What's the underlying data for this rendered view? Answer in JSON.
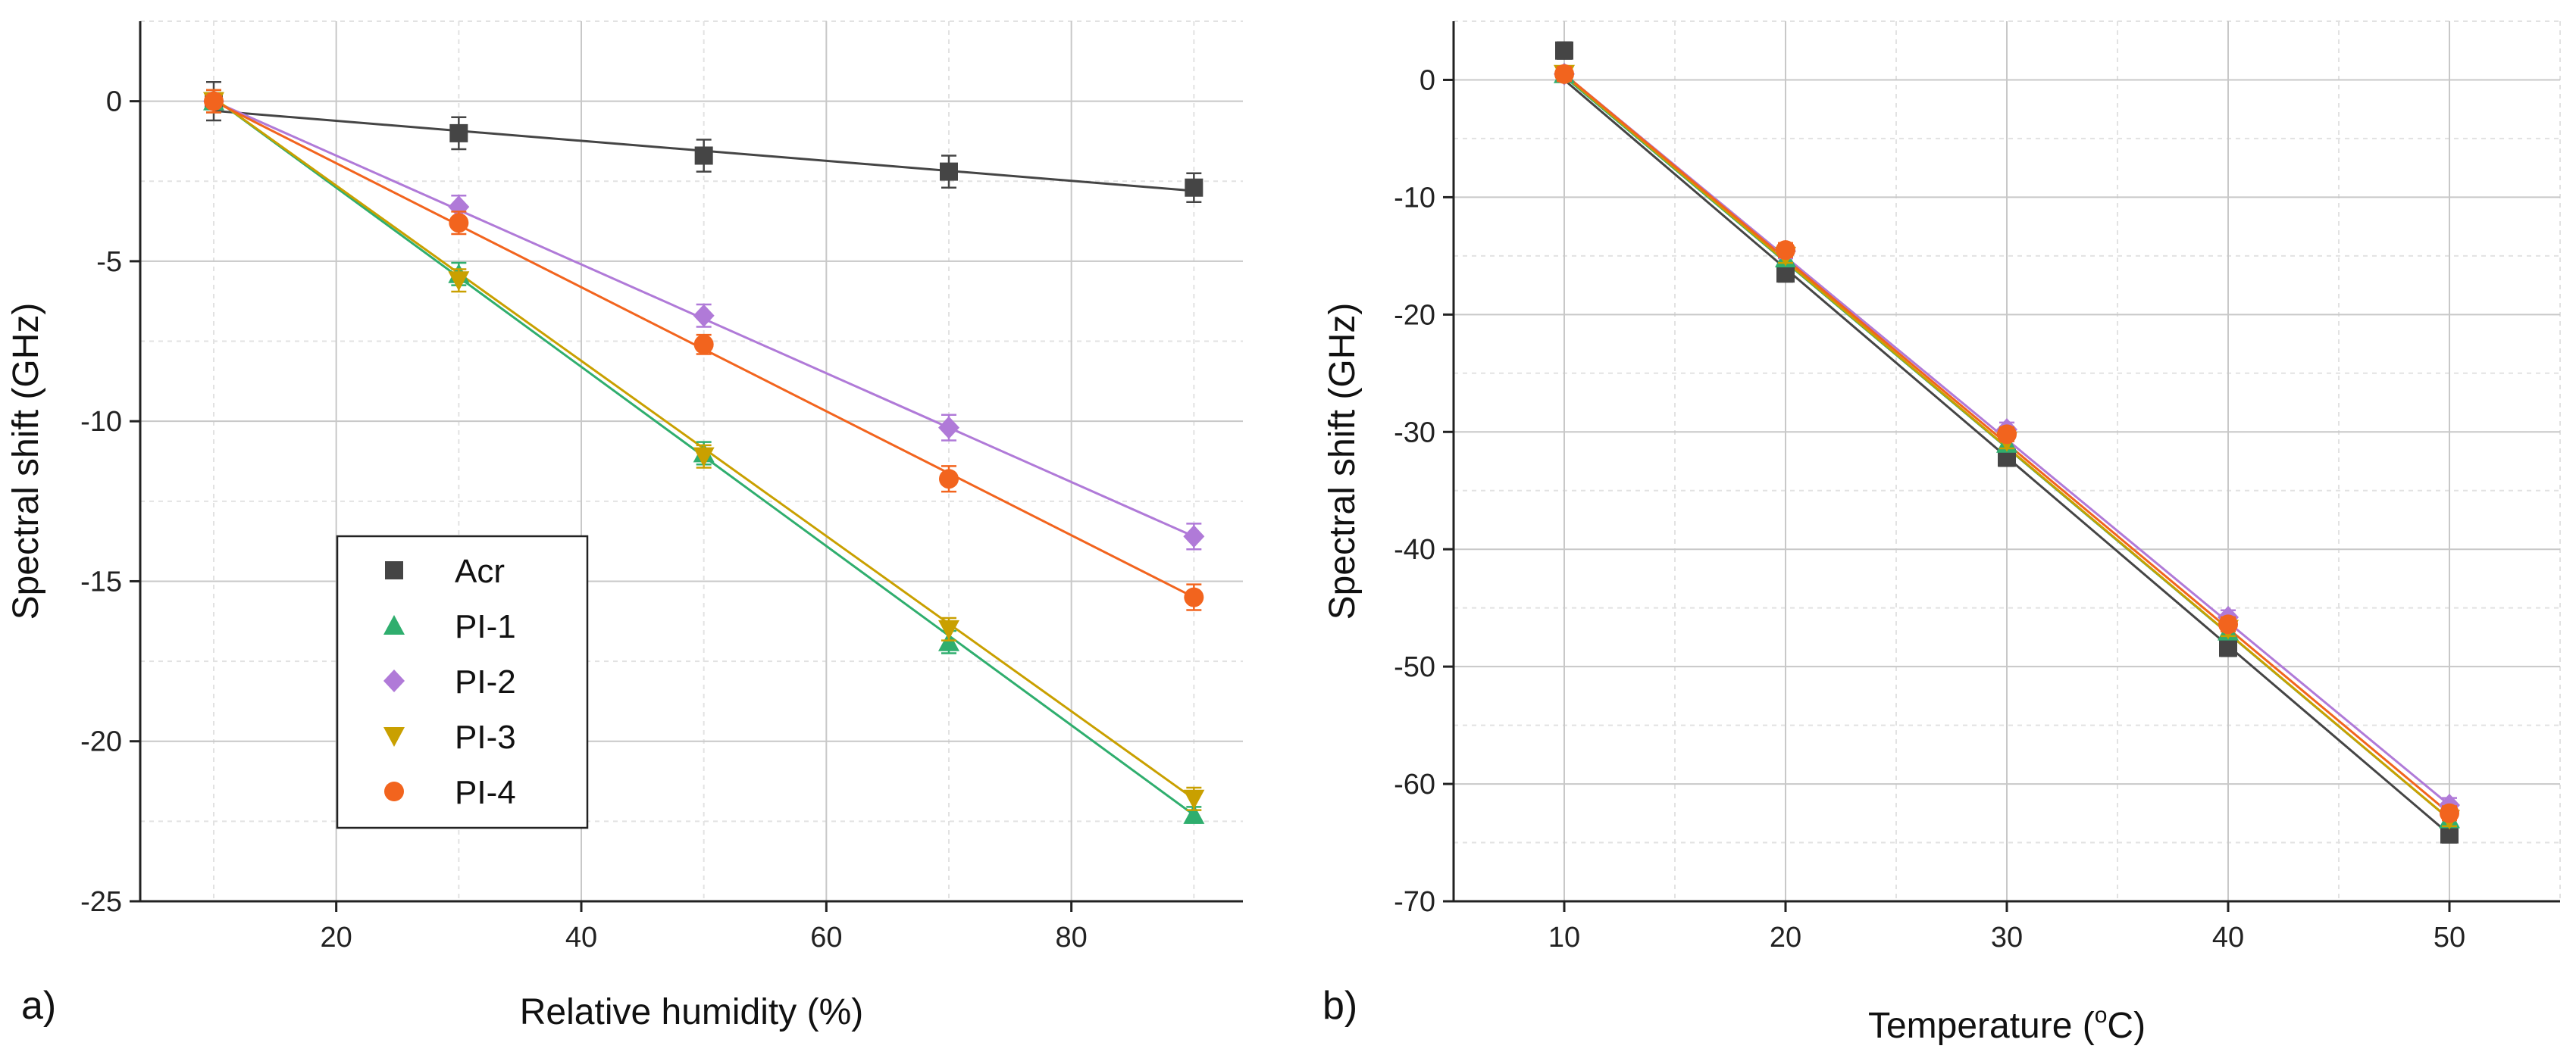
{
  "colors": {
    "Acr": "#454545",
    "PI-1": "#2fae6e",
    "PI-2": "#b07ad8",
    "PI-3": "#c9a000",
    "PI-4": "#f2641e",
    "grid_major": "#c8c8c8",
    "grid_minor": "#e2e2e2",
    "axis": "#222222"
  },
  "chart_data": [
    {
      "type": "scatter",
      "panel_label": "a)",
      "title": "",
      "xlabel": "Relative humidity (%)",
      "ylabel": "Spectral shift (GHz)",
      "xlim": [
        4,
        94
      ],
      "ylim": [
        -25,
        2.5
      ],
      "xticks": [
        20,
        40,
        60,
        80
      ],
      "yticks": [
        0,
        -5,
        -10,
        -15,
        -20,
        -25
      ],
      "grid": true,
      "legend": {
        "position": "bottom-left",
        "entries": [
          "Acr",
          "PI-1",
          "PI-2",
          "PI-3",
          "PI-4"
        ]
      },
      "x": [
        10,
        30,
        50,
        70,
        90
      ],
      "series": [
        {
          "name": "Acr",
          "marker": "square",
          "values": [
            0.0,
            -1.0,
            -1.7,
            -2.2,
            -2.7
          ],
          "errors": [
            0.6,
            0.5,
            0.5,
            0.5,
            0.45
          ],
          "fit": [
            10,
            -0.3,
            90,
            -2.8
          ]
        },
        {
          "name": "PI-1",
          "marker": "triangle-up",
          "values": [
            0.0,
            -5.4,
            -11.0,
            -16.9,
            -22.3
          ],
          "errors": [
            0.35,
            0.35,
            0.35,
            0.35,
            0.25
          ],
          "fit": [
            10,
            0.1,
            90,
            -22.3
          ]
        },
        {
          "name": "PI-2",
          "marker": "diamond",
          "values": [
            0.0,
            -3.3,
            -6.7,
            -10.2,
            -13.6
          ],
          "errors": [
            0.35,
            0.35,
            0.35,
            0.4,
            0.4
          ],
          "fit": [
            10,
            0.0,
            90,
            -13.6
          ]
        },
        {
          "name": "PI-3",
          "marker": "triangle-down",
          "values": [
            0.0,
            -5.6,
            -11.1,
            -16.5,
            -21.8
          ],
          "errors": [
            0.35,
            0.35,
            0.35,
            0.35,
            0.35
          ],
          "fit": [
            10,
            0.1,
            90,
            -21.8
          ]
        },
        {
          "name": "PI-4",
          "marker": "circle",
          "values": [
            0.0,
            -3.8,
            -7.6,
            -11.8,
            -15.5
          ],
          "errors": [
            0.35,
            0.35,
            0.3,
            0.4,
            0.4
          ],
          "fit": [
            10,
            0.0,
            90,
            -15.5
          ]
        }
      ]
    },
    {
      "type": "scatter",
      "panel_label": "b)",
      "title": "",
      "xlabel": "Temperature (",
      "xlabel_sup": "o",
      "xlabel_end": "C)",
      "ylabel": "Spectral shift (GHz)",
      "xlim": [
        5,
        55
      ],
      "ylim": [
        -70,
        5
      ],
      "xticks": [
        10,
        20,
        30,
        40,
        50
      ],
      "yticks": [
        0,
        -10,
        -20,
        -30,
        -40,
        -50,
        -60,
        -70
      ],
      "grid": true,
      "legend": null,
      "x": [
        10,
        20,
        30,
        40,
        50
      ],
      "series": [
        {
          "name": "Acr",
          "marker": "square",
          "values": [
            2.5,
            -16.5,
            -32.2,
            -48.4,
            -64.3
          ],
          "errors": [
            0.7,
            0.7,
            0.7,
            0.7,
            0.7
          ],
          "fit": [
            10,
            0.0,
            50,
            -64.3
          ]
        },
        {
          "name": "PI-1",
          "marker": "triangle-up",
          "values": [
            0.5,
            -15.2,
            -31.0,
            -47.0,
            -63.0
          ],
          "errors": [
            0.6,
            0.6,
            0.6,
            0.6,
            0.6
          ],
          "fit": [
            10,
            0.3,
            50,
            -63.0
          ]
        },
        {
          "name": "PI-2",
          "marker": "diamond",
          "values": [
            0.5,
            -14.6,
            -29.8,
            -45.8,
            -61.8
          ],
          "errors": [
            0.6,
            0.6,
            0.6,
            0.6,
            0.6
          ],
          "fit": [
            10,
            0.5,
            50,
            -61.8
          ]
        },
        {
          "name": "PI-3",
          "marker": "triangle-down",
          "values": [
            0.5,
            -15.0,
            -30.8,
            -46.8,
            -63.0
          ],
          "errors": [
            0.6,
            0.6,
            0.6,
            0.6,
            0.6
          ],
          "fit": [
            10,
            0.4,
            50,
            -63.0
          ]
        },
        {
          "name": "PI-4",
          "marker": "circle",
          "values": [
            0.5,
            -14.5,
            -30.2,
            -46.4,
            -62.5
          ],
          "errors": [
            0.6,
            0.6,
            0.6,
            0.6,
            0.6
          ],
          "fit": [
            10,
            0.5,
            50,
            -62.5
          ]
        }
      ]
    }
  ]
}
